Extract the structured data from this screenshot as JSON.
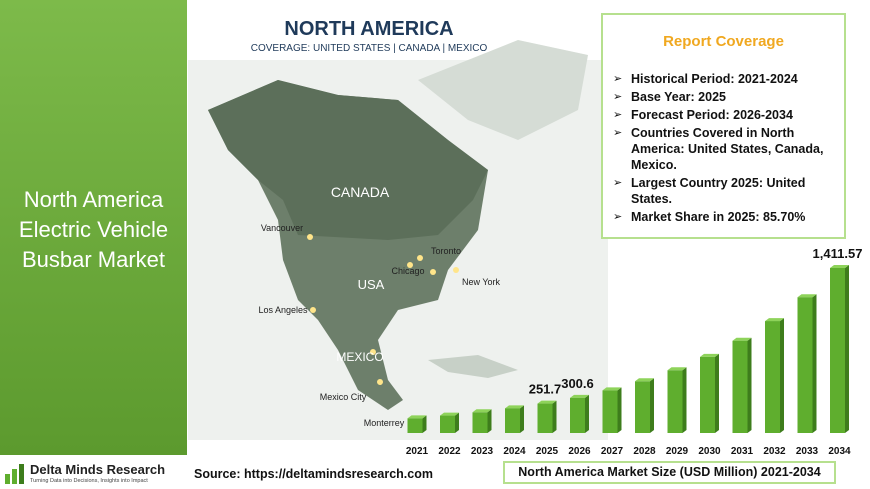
{
  "sidebar": {
    "title": "North America Electric Vehicle Busbar Market"
  },
  "logo": {
    "name": "Delta Minds Research",
    "tagline": "Turning Data into Decisions, Insights into Impact"
  },
  "map": {
    "title": "NORTH AMERICA",
    "coverage": "COVERAGE: UNITED STATES | CANADA | MEXICO",
    "labels": [
      "CANADA",
      "USA",
      "MEXICO",
      "Vancouver",
      "Toronto",
      "Chicago",
      "New York",
      "Los Angeles",
      "Mexico City",
      "Monterrey"
    ]
  },
  "report_coverage": {
    "title": "Report Coverage",
    "items": [
      "Historical Period: 2021-2024",
      "Base Year: 2025",
      "Forecast Period: 2026-2034",
      "Countries Covered in North America: United States, Canada, Mexico.",
      "Largest Country 2025: United States.",
      "Market Share in 2025: 85.70%"
    ]
  },
  "source": "Source: https://deltamindsresearch.com",
  "chart_data": {
    "type": "bar",
    "title": "North America Market Size (USD Million) 2021-2034",
    "categories": [
      "2021",
      "2022",
      "2023",
      "2024",
      "2025",
      "2026",
      "2027",
      "2028",
      "2029",
      "2030",
      "2031",
      "2032",
      "2033",
      "2034"
    ],
    "values": [
      125,
      149,
      177,
      211,
      251.7,
      300.6,
      364.6,
      442.3,
      536.5,
      650.8,
      789.4,
      957.5,
      1161.4,
      1411.57
    ],
    "value_labels": [
      null,
      null,
      null,
      null,
      "251.7",
      "300.6",
      null,
      null,
      null,
      null,
      null,
      null,
      null,
      "1,411.57"
    ],
    "color": "#5fae2e"
  }
}
